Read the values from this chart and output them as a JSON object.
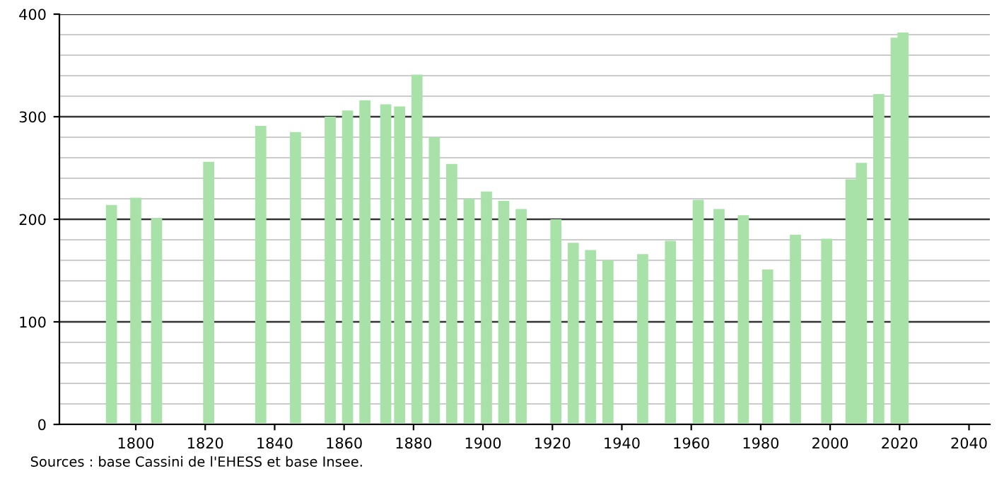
{
  "chart_data": {
    "type": "bar",
    "x": [
      1793,
      1800,
      1806,
      1821,
      1836,
      1846,
      1856,
      1861,
      1866,
      1872,
      1876,
      1881,
      1886,
      1891,
      1896,
      1901,
      1906,
      1911,
      1921,
      1926,
      1931,
      1936,
      1946,
      1954,
      1962,
      1968,
      1975,
      1982,
      1990,
      1999,
      2006,
      2009,
      2014,
      2019,
      2021
    ],
    "values": [
      214,
      221,
      201,
      256,
      291,
      285,
      300,
      306,
      316,
      312,
      310,
      341,
      280,
      254,
      220,
      227,
      218,
      210,
      200,
      177,
      170,
      160,
      166,
      179,
      219,
      210,
      204,
      151,
      185,
      181,
      239,
      255,
      322,
      377,
      382
    ],
    "color": "#a8e2a8",
    "xlim": [
      1778,
      2046
    ],
    "ylim": [
      0,
      400
    ],
    "xticks": [
      1800,
      1820,
      1840,
      1860,
      1880,
      1900,
      1920,
      1940,
      1960,
      1980,
      2000,
      2020,
      2040
    ],
    "yticks": [
      0,
      100,
      200,
      300,
      400
    ],
    "grid": "y",
    "annotations": [
      "Sources : base Cassini de l'EHESS et base Insee."
    ]
  }
}
